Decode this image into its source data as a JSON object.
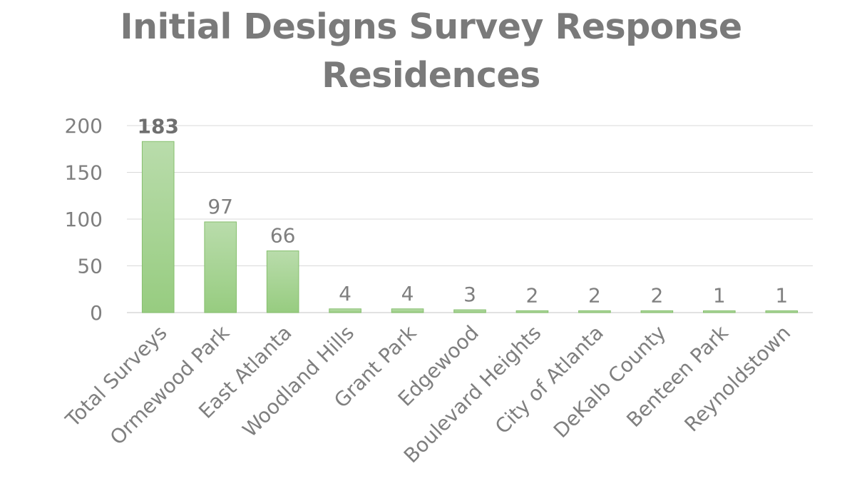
{
  "chart_data": {
    "type": "bar",
    "title_lines": [
      "Initial Designs Survey Response",
      "Residences"
    ],
    "categories": [
      "Total Surveys",
      "Ormewood Park",
      "East Atlanta",
      "Woodland Hills",
      "Grant Park",
      "Edgewood",
      "Boulevard Heights",
      "City of Atlanta",
      "DeKalb County",
      "Benteen Park",
      "Reynoldstown"
    ],
    "values": [
      183,
      97,
      66,
      4,
      4,
      3,
      2,
      2,
      2,
      1,
      1
    ],
    "y_ticks": [
      0,
      50,
      100,
      150,
      200
    ],
    "ylim": [
      0,
      200
    ],
    "grid": true,
    "legend": "none",
    "bold_value_labels": [
      0
    ],
    "colors": {
      "bar_top": "#b9dcab",
      "bar_bottom": "#97cc80",
      "bar_stroke": "#86bf6e",
      "grid": "#d9d9d9",
      "text": "#7f7f7f"
    }
  }
}
